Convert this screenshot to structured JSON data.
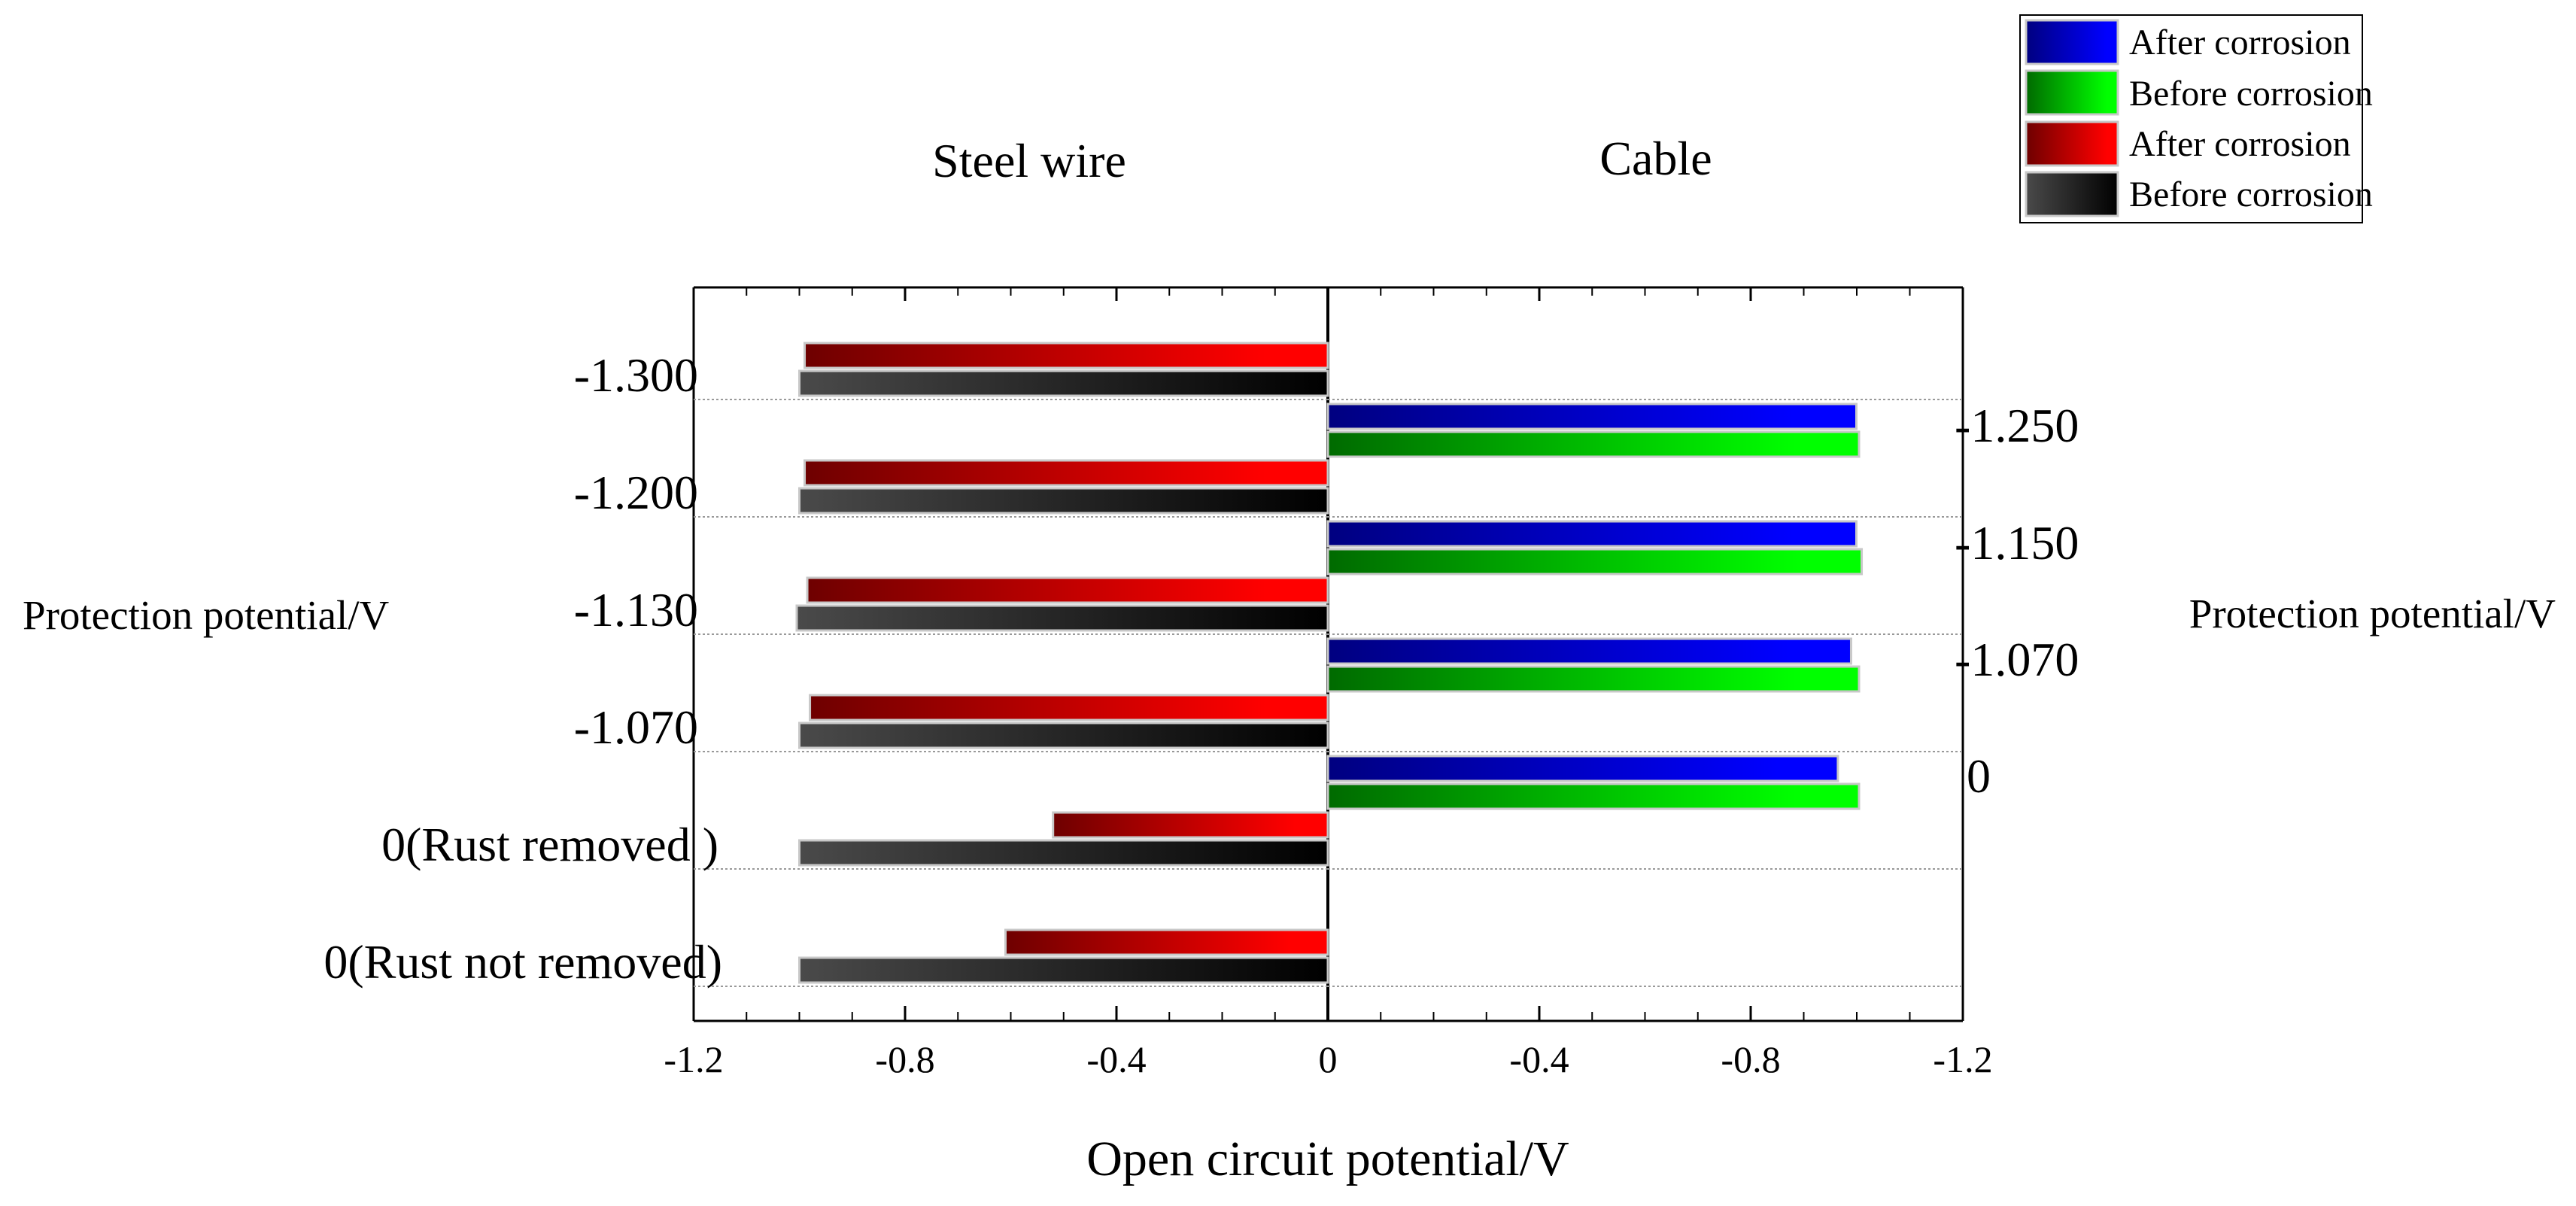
{
  "chart_data": {
    "type": "bar",
    "orientation": "horizontal",
    "xlabel": "Open circuit potential/V",
    "x_ticks": [
      "-1.2",
      "-0.8",
      "-0.4",
      "0",
      "-0.4",
      "-0.8",
      "-1.2"
    ],
    "xlim_each_side": [
      0,
      -1.2
    ],
    "grid": "dotted horizontal lines between categories",
    "legend_position": "top-right",
    "panels": [
      {
        "title": "Steel wire",
        "side": "left",
        "ylabel": "Protection potential/V",
        "categories": [
          "-1.300",
          "-1.200",
          "-1.130",
          "-1.070",
          "0(Rust removed )",
          "0(Rust not removed)"
        ],
        "series": [
          {
            "name": "After corrosion",
            "color": "#ff0000",
            "values": [
              -0.99,
              -0.99,
              -0.985,
              -0.98,
              -0.52,
              -0.61
            ]
          },
          {
            "name": "Before corrosion",
            "color": "#2a2a2a",
            "values": [
              -1.0,
              -1.0,
              -1.005,
              -1.0,
              -1.0,
              -1.0
            ]
          }
        ]
      },
      {
        "title": "Cable",
        "side": "right",
        "ylabel": "Protection potential/V",
        "categories": [
          "-1.250",
          "-1.150",
          "-1.070",
          "0"
        ],
        "series": [
          {
            "name": "After corrosion",
            "color": "#0000ff",
            "values": [
              -1.0,
              -1.0,
              -0.99,
              -0.965
            ]
          },
          {
            "name": "Before corrosion",
            "color": "#00ff00",
            "values": [
              -1.005,
              -1.01,
              -1.005,
              -1.005
            ]
          }
        ]
      }
    ],
    "legend": [
      {
        "name": "After corrosion",
        "color": "#0000ff"
      },
      {
        "name": "Before corrosion",
        "color": "#00ff00"
      },
      {
        "name": "After corrosion",
        "color": "#ff0000"
      },
      {
        "name": "Before corrosion",
        "color": "#2a2a2a"
      }
    ]
  }
}
